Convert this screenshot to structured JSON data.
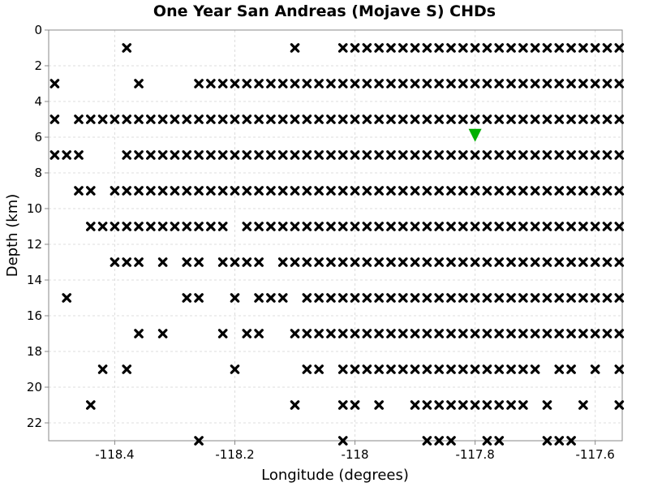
{
  "chart_data": {
    "type": "scatter",
    "title": "One Year San Andreas (Mojave S) CHDs",
    "xlabel": "Longitude (degrees)",
    "ylabel": "Depth (km)",
    "xlim": [
      -118.51,
      -117.555
    ],
    "ylim": [
      23,
      0
    ],
    "y_inverted": true,
    "xticks": [
      -118.4,
      -118.2,
      -118.0,
      -117.8,
      -117.6
    ],
    "xtick_labels": [
      "-118.4",
      "-118.2",
      "-118",
      "-117.8",
      "-117.6"
    ],
    "yticks": [
      0,
      2,
      4,
      6,
      8,
      10,
      12,
      14,
      16,
      18,
      20,
      22
    ],
    "ytick_labels": [
      "0",
      "2",
      "4",
      "6",
      "8",
      "10",
      "12",
      "14",
      "16",
      "18",
      "20",
      "22"
    ],
    "grid": true,
    "series": [
      {
        "marker": "x",
        "color": "#000000",
        "rows": [
          {
            "depth": 1,
            "lon": [
              -118.38,
              -118.1
            ],
            "run": [
              -118.02,
              -117.56
            ]
          },
          {
            "depth": 3,
            "lon": [
              -118.5,
              -118.36
            ],
            "run": [
              -118.26,
              -117.56
            ]
          },
          {
            "depth": 5,
            "lon": [
              -118.5
            ],
            "run": [
              -118.46,
              -117.56
            ]
          },
          {
            "depth": 7,
            "lon": [
              -118.5,
              -118.48,
              -118.46
            ],
            "run": [
              -118.38,
              -117.56
            ]
          },
          {
            "depth": 9,
            "lon": [
              -118.46,
              -118.44
            ],
            "run": [
              -118.4,
              -117.56
            ]
          },
          {
            "depth": 11,
            "lon": [
              -118.44,
              -118.42,
              -118.4,
              -118.38,
              -118.36,
              -118.34,
              -118.32,
              -118.3,
              -118.28,
              -118.26,
              -118.24,
              -118.22
            ],
            "run": [
              -118.18,
              -117.56
            ]
          },
          {
            "depth": 13,
            "lon": [
              -118.4,
              -118.38,
              -118.36,
              -118.32,
              -118.28,
              -118.26,
              -118.22,
              -118.2,
              -118.18,
              -118.16
            ],
            "run": [
              -118.12,
              -117.56
            ]
          },
          {
            "depth": 15,
            "lon": [
              -118.48,
              -118.28,
              -118.26,
              -118.2,
              -118.16,
              -118.14,
              -118.12
            ],
            "run": [
              -118.08,
              -117.56
            ]
          },
          {
            "depth": 17,
            "lon": [
              -118.36,
              -118.32,
              -118.22,
              -118.18,
              -118.16
            ],
            "run": [
              -118.1,
              -117.56
            ]
          },
          {
            "depth": 19,
            "lon": [
              -118.42,
              -118.38,
              -118.2,
              -118.08,
              -118.06,
              -117.66,
              -117.64,
              -117.6,
              -117.56
            ],
            "run": [
              -118.02,
              -117.7
            ]
          },
          {
            "depth": 21,
            "lon": [
              -118.44,
              -118.1,
              -118.02,
              -118.0,
              -117.96,
              -117.9,
              -117.88,
              -117.86,
              -117.84,
              -117.82,
              -117.8,
              -117.78,
              -117.76,
              -117.74,
              -117.72,
              -117.68,
              -117.62,
              -117.56
            ]
          },
          {
            "depth": 23,
            "lon": [
              -118.26,
              -118.02,
              -117.88,
              -117.86,
              -117.84,
              -117.78,
              -117.76,
              -117.68,
              -117.66,
              -117.64
            ]
          }
        ],
        "run_step": 0.02
      },
      {
        "marker": "triangle-down",
        "color": "#00b000",
        "points": [
          {
            "lon": -117.8,
            "depth": 5.9
          }
        ]
      }
    ]
  }
}
